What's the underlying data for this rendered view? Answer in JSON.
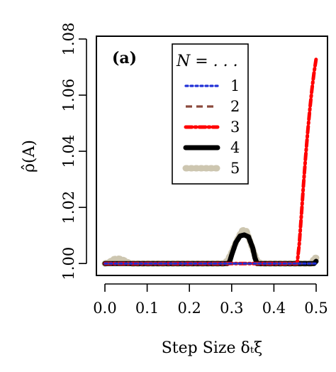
{
  "chart_data": {
    "type": "line",
    "panel_label": "(a)",
    "xlabel": "Step Size δₜξ",
    "ylabel": "ρ̂(A)",
    "xlim": [
      0.0,
      0.5
    ],
    "ylim": [
      0.996,
      1.081
    ],
    "x_ticks": [
      0.0,
      0.1,
      0.2,
      0.3,
      0.4,
      0.5
    ],
    "x_tick_labels": [
      "0.0",
      "0.1",
      "0.2",
      "0.3",
      "0.4",
      "0.5"
    ],
    "y_ticks": [
      1.0,
      1.02,
      1.04,
      1.06,
      1.08
    ],
    "y_tick_labels": [
      "1.00",
      "1.02",
      "1.04",
      "1.06",
      "1.08"
    ],
    "grid": false,
    "legend": {
      "title": "N = . . .",
      "placement": "top-center"
    },
    "series": [
      {
        "name": "5",
        "color": "#cdc6b0",
        "style": "thick-dotted",
        "x": [
          0.0,
          0.01,
          0.02,
          0.03,
          0.04,
          0.05,
          0.06,
          0.1,
          0.2,
          0.28,
          0.29,
          0.3,
          0.31,
          0.32,
          0.325,
          0.33,
          0.335,
          0.34,
          0.35,
          0.36,
          0.37,
          0.4,
          0.45,
          0.49,
          0.495,
          0.5
        ],
        "y": [
          1.0,
          1.0005,
          1.0015,
          1.0018,
          1.0015,
          1.0008,
          1.0,
          1.0,
          1.0,
          1.0,
          1.001,
          1.004,
          1.0075,
          1.0105,
          1.0117,
          1.012,
          1.0115,
          1.0095,
          1.005,
          1.001,
          1.0,
          1.0,
          1.0,
          1.0,
          1.002,
          1.002
        ]
      },
      {
        "name": "4",
        "color": "#000000",
        "style": "solid-thick",
        "x": [
          0.0,
          0.1,
          0.2,
          0.29,
          0.295,
          0.3,
          0.31,
          0.32,
          0.33,
          0.34,
          0.35,
          0.355,
          0.36,
          0.4,
          0.45,
          0.49,
          0.495,
          0.5
        ],
        "y": [
          1.0,
          1.0,
          1.0,
          1.0,
          1.0005,
          1.003,
          1.0075,
          1.0098,
          1.0102,
          1.0095,
          1.0055,
          1.002,
          1.0,
          1.0,
          1.0,
          1.0,
          1.0,
          1.0008
        ]
      },
      {
        "name": "3",
        "color": "#ff0000",
        "style": "dash-dot",
        "x": [
          0.0,
          0.1,
          0.2,
          0.3,
          0.4,
          0.455,
          0.46,
          0.465,
          0.47,
          0.475,
          0.48,
          0.485,
          0.49,
          0.495,
          0.5
        ],
        "y": [
          1.0,
          1.0,
          1.0,
          1.0,
          1.0,
          1.0,
          1.007,
          1.017,
          1.028,
          1.038,
          1.047,
          1.055,
          1.062,
          1.068,
          1.073
        ]
      },
      {
        "name": "2",
        "color": "#8b4a3c",
        "style": "dashed",
        "x": [
          0.0,
          0.1,
          0.2,
          0.3,
          0.4,
          0.5
        ],
        "y": [
          1.0,
          1.0,
          1.0,
          1.0,
          1.0,
          1.0
        ]
      },
      {
        "name": "1",
        "color": "#1f2fd6",
        "style": "dotted",
        "x": [
          0.0,
          0.1,
          0.2,
          0.3,
          0.4,
          0.5
        ],
        "y": [
          1.0,
          1.0,
          1.0,
          1.0,
          1.0,
          1.0
        ]
      }
    ],
    "legend_order": [
      "1",
      "2",
      "3",
      "4",
      "5"
    ]
  }
}
